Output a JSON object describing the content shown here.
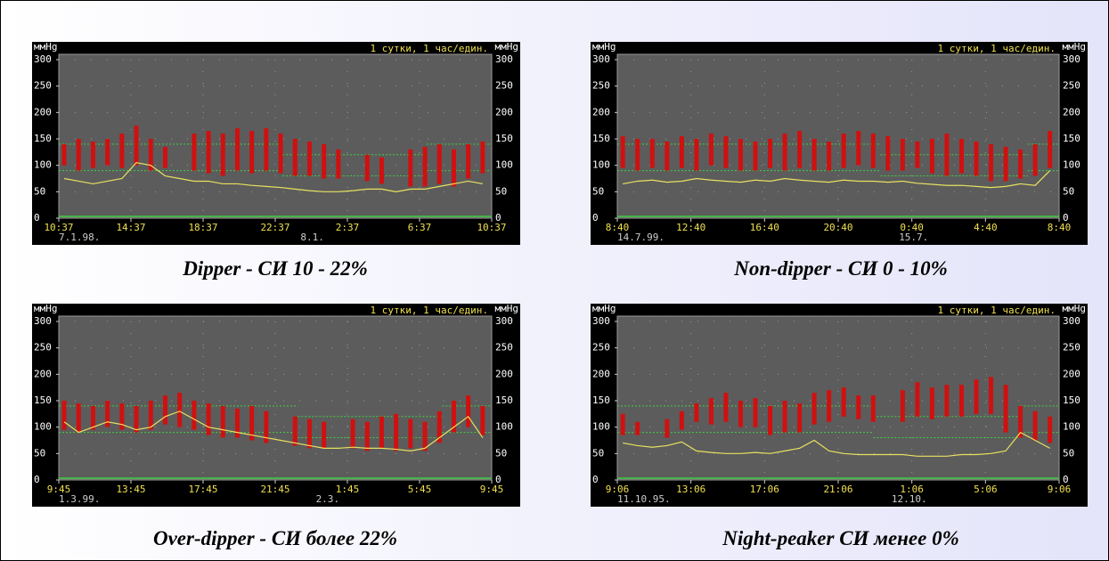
{
  "chart_data": [
    {
      "type": "bar",
      "header": "1 сутки, 1 час/един.",
      "ylabel": "ммHg",
      "y2label": "ммHg",
      "caption": "Dipper -  СИ 10 - 22%",
      "xlim": [
        0,
        24
      ],
      "ylim": [
        0,
        300
      ],
      "yticks": [
        0,
        50,
        100,
        150,
        200,
        250,
        300
      ],
      "grid": true,
      "xticks": [
        {
          "value": 0,
          "label": "10:37"
        },
        {
          "value": 4,
          "label": "14:37"
        },
        {
          "value": 8,
          "label": "18:37"
        },
        {
          "value": 12,
          "label": "22:37"
        },
        {
          "value": 16,
          "label": "2:37"
        },
        {
          "value": 20,
          "label": "6:37"
        },
        {
          "value": 24,
          "label": "10:37"
        }
      ],
      "date_labels": [
        {
          "value": 0,
          "label": "7.1.98."
        },
        {
          "value": 13.4,
          "label": "8.1."
        }
      ],
      "limits": [
        {
          "from": 0,
          "to": 12.4,
          "values": [
            140,
            90
          ]
        },
        {
          "from": 12.4,
          "to": 20.4,
          "values": [
            120,
            80
          ]
        },
        {
          "from": 20.4,
          "to": 24,
          "values": [
            140,
            90
          ]
        }
      ],
      "x": [
        0.3,
        1.1,
        1.9,
        2.7,
        3.5,
        4.3,
        5.1,
        5.9,
        6.7,
        7.5,
        8.3,
        9.1,
        9.9,
        10.7,
        11.5,
        12.3,
        13.1,
        13.9,
        14.7,
        15.5,
        16.3,
        17.1,
        17.9,
        18.7,
        19.5,
        20.3,
        21.1,
        21.9,
        22.7,
        23.5
      ],
      "series": [
        {
          "type": "bar",
          "color": "#d01010",
          "high": [
            140,
            150,
            145,
            150,
            160,
            175,
            150,
            135,
            null,
            160,
            165,
            160,
            170,
            165,
            170,
            160,
            150,
            145,
            140,
            130,
            null,
            120,
            115,
            null,
            130,
            135,
            140,
            130,
            140,
            145
          ],
          "low": [
            100,
            90,
            95,
            100,
            95,
            100,
            90,
            95,
            null,
            90,
            85,
            80,
            90,
            85,
            90,
            85,
            80,
            80,
            75,
            75,
            null,
            70,
            65,
            null,
            60,
            60,
            65,
            60,
            75,
            85
          ]
        },
        {
          "type": "line",
          "color": "#e8e060",
          "values": [
            75,
            70,
            65,
            70,
            75,
            105,
            100,
            80,
            75,
            70,
            70,
            65,
            65,
            62,
            60,
            58,
            55,
            52,
            50,
            50,
            52,
            55,
            55,
            50,
            55,
            55,
            60,
            65,
            70,
            65
          ]
        }
      ]
    },
    {
      "type": "bar",
      "header": "1 сутки, 1 час/един.",
      "ylabel": "ммHg",
      "y2label": "ммHg",
      "caption": "Non-dipper -  СИ 0 - 10%",
      "xlim": [
        0,
        24
      ],
      "ylim": [
        0,
        300
      ],
      "yticks": [
        0,
        50,
        100,
        150,
        200,
        250,
        300
      ],
      "grid": true,
      "xticks": [
        {
          "value": 0,
          "label": "8:40"
        },
        {
          "value": 4,
          "label": "12:40"
        },
        {
          "value": 8,
          "label": "16:40"
        },
        {
          "value": 12,
          "label": "20:40"
        },
        {
          "value": 16,
          "label": "0:40"
        },
        {
          "value": 20,
          "label": "4:40"
        },
        {
          "value": 24,
          "label": "8:40"
        }
      ],
      "date_labels": [
        {
          "value": 0,
          "label": "14.7.99."
        },
        {
          "value": 15.3,
          "label": "15.7."
        }
      ],
      "limits": [
        {
          "from": 0,
          "to": 14.3,
          "values": [
            140,
            90
          ]
        },
        {
          "from": 14.3,
          "to": 22.3,
          "values": [
            120,
            80
          ]
        },
        {
          "from": 22.3,
          "to": 24,
          "values": [
            140,
            90
          ]
        }
      ],
      "x": [
        0.3,
        1.1,
        1.9,
        2.7,
        3.5,
        4.3,
        5.1,
        5.9,
        6.7,
        7.5,
        8.3,
        9.1,
        9.9,
        10.7,
        11.5,
        12.3,
        13.1,
        13.9,
        14.7,
        15.5,
        16.3,
        17.1,
        17.9,
        18.7,
        19.5,
        20.3,
        21.1,
        21.9,
        22.7,
        23.5
      ],
      "series": [
        {
          "type": "bar",
          "color": "#d01010",
          "high": [
            155,
            150,
            150,
            145,
            155,
            150,
            160,
            155,
            150,
            145,
            150,
            160,
            165,
            150,
            145,
            160,
            165,
            160,
            155,
            150,
            145,
            150,
            160,
            150,
            145,
            140,
            135,
            130,
            140,
            165
          ],
          "low": [
            95,
            90,
            95,
            90,
            95,
            90,
            100,
            95,
            90,
            90,
            95,
            90,
            95,
            90,
            90,
            95,
            100,
            95,
            90,
            90,
            95,
            85,
            80,
            85,
            80,
            70,
            70,
            75,
            80,
            95
          ]
        },
        {
          "type": "line",
          "color": "#e8e060",
          "values": [
            65,
            70,
            72,
            68,
            70,
            75,
            72,
            70,
            68,
            72,
            70,
            75,
            72,
            70,
            68,
            72,
            70,
            70,
            68,
            70,
            66,
            64,
            62,
            62,
            60,
            58,
            60,
            65,
            62,
            90
          ]
        }
      ]
    },
    {
      "type": "bar",
      "header": "1 сутки, 1 час/един.",
      "ylabel": "ммHg",
      "y2label": "ммHg",
      "caption": "Over-dipper -  СИ более 22%",
      "xlim": [
        0,
        24
      ],
      "ylim": [
        0,
        300
      ],
      "yticks": [
        0,
        50,
        100,
        150,
        200,
        250,
        300
      ],
      "grid": true,
      "xticks": [
        {
          "value": 0,
          "label": "9:45"
        },
        {
          "value": 4,
          "label": "13:45"
        },
        {
          "value": 8,
          "label": "17:45"
        },
        {
          "value": 12,
          "label": "21:45"
        },
        {
          "value": 16,
          "label": "1:45"
        },
        {
          "value": 20,
          "label": "5:45"
        },
        {
          "value": 24,
          "label": "9:45"
        }
      ],
      "date_labels": [
        {
          "value": 0,
          "label": "1.3.99."
        },
        {
          "value": 14.25,
          "label": "2.3."
        }
      ],
      "limits": [
        {
          "from": 0,
          "to": 13.25,
          "values": [
            140,
            90
          ]
        },
        {
          "from": 13.25,
          "to": 21.25,
          "values": [
            120,
            80
          ]
        },
        {
          "from": 21.25,
          "to": 24,
          "values": [
            140,
            90
          ]
        }
      ],
      "x": [
        0.3,
        1.1,
        1.9,
        2.7,
        3.5,
        4.3,
        5.1,
        5.9,
        6.7,
        7.5,
        8.3,
        9.1,
        9.9,
        10.7,
        11.5,
        12.3,
        13.1,
        13.9,
        14.7,
        15.5,
        16.3,
        17.1,
        17.9,
        18.7,
        19.5,
        20.3,
        21.1,
        21.9,
        22.7,
        23.5
      ],
      "series": [
        {
          "type": "bar",
          "color": "#d01010",
          "high": [
            150,
            145,
            140,
            150,
            145,
            140,
            150,
            160,
            165,
            150,
            145,
            140,
            135,
            140,
            130,
            null,
            120,
            115,
            110,
            null,
            115,
            110,
            120,
            125,
            115,
            110,
            130,
            150,
            160,
            140
          ],
          "low": [
            95,
            90,
            95,
            100,
            95,
            90,
            95,
            105,
            100,
            95,
            85,
            80,
            80,
            75,
            70,
            null,
            65,
            60,
            60,
            null,
            60,
            55,
            60,
            55,
            60,
            55,
            70,
            90,
            100,
            85
          ]
        },
        {
          "type": "line",
          "color": "#e8e060",
          "values": [
            110,
            90,
            100,
            110,
            105,
            95,
            100,
            120,
            130,
            115,
            100,
            95,
            90,
            85,
            80,
            75,
            70,
            65,
            60,
            60,
            62,
            60,
            60,
            58,
            55,
            60,
            80,
            100,
            120,
            80
          ]
        }
      ]
    },
    {
      "type": "bar",
      "header": "1 сутки, 1 час/един.",
      "ylabel": "ммHg",
      "y2label": "ммHg",
      "caption": "Night-peaker СИ менее 0%",
      "xlim": [
        0,
        24
      ],
      "ylim": [
        0,
        300
      ],
      "yticks": [
        0,
        50,
        100,
        150,
        200,
        250,
        300
      ],
      "grid": true,
      "xticks": [
        {
          "value": 0,
          "label": "9:06"
        },
        {
          "value": 4,
          "label": "13:06"
        },
        {
          "value": 8,
          "label": "17:06"
        },
        {
          "value": 12,
          "label": "21:06"
        },
        {
          "value": 16,
          "label": "1:06"
        },
        {
          "value": 20,
          "label": "5:06"
        },
        {
          "value": 24,
          "label": "9:06"
        }
      ],
      "date_labels": [
        {
          "value": 0,
          "label": "11.10.95."
        },
        {
          "value": 14.9,
          "label": "12.10."
        }
      ],
      "limits": [
        {
          "from": 0,
          "to": 13.9,
          "values": [
            140,
            90
          ]
        },
        {
          "from": 13.9,
          "to": 21.9,
          "values": [
            120,
            80
          ]
        },
        {
          "from": 21.9,
          "to": 24,
          "values": [
            140,
            90
          ]
        }
      ],
      "x": [
        0.3,
        1.1,
        1.9,
        2.7,
        3.5,
        4.3,
        5.1,
        5.9,
        6.7,
        7.5,
        8.3,
        9.1,
        9.9,
        10.7,
        11.5,
        12.3,
        13.1,
        13.9,
        14.7,
        15.5,
        16.3,
        17.1,
        17.9,
        18.7,
        19.5,
        20.3,
        21.1,
        21.9,
        22.7,
        23.5
      ],
      "series": [
        {
          "type": "bar",
          "color": "#d01010",
          "high": [
            125,
            110,
            null,
            115,
            130,
            145,
            155,
            165,
            150,
            155,
            140,
            150,
            145,
            165,
            170,
            175,
            160,
            160,
            null,
            170,
            185,
            175,
            180,
            180,
            190,
            195,
            180,
            140,
            130,
            120
          ],
          "low": [
            85,
            85,
            null,
            80,
            95,
            110,
            105,
            110,
            100,
            100,
            85,
            90,
            90,
            105,
            110,
            120,
            115,
            110,
            null,
            110,
            120,
            115,
            120,
            120,
            125,
            125,
            90,
            80,
            75,
            70
          ]
        },
        {
          "type": "line",
          "color": "#e8e060",
          "values": [
            70,
            65,
            62,
            65,
            72,
            55,
            52,
            50,
            50,
            52,
            50,
            55,
            60,
            75,
            55,
            50,
            48,
            48,
            48,
            48,
            45,
            45,
            45,
            48,
            48,
            50,
            55,
            90,
            75,
            60
          ]
        }
      ]
    }
  ]
}
